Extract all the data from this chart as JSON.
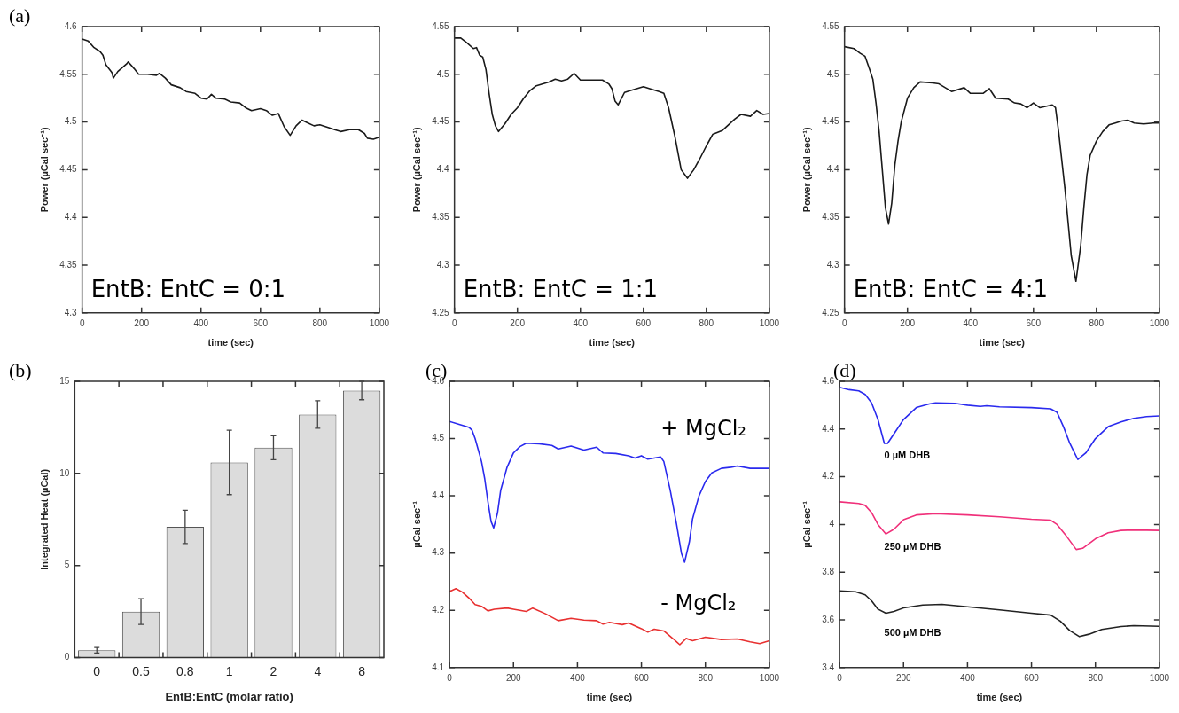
{
  "chart_data": [
    {
      "type": "line",
      "title": "(a)",
      "xlabel": "time (sec)",
      "ylabel": "Power (µCal sec⁻¹)",
      "annotations": [
        "EntB: EntC = 0:1"
      ],
      "xlim": [
        0,
        1000
      ],
      "xticks": [
        0,
        200,
        400,
        600,
        800,
        1000
      ],
      "ylim": [
        4.3,
        4.6
      ],
      "yticks": [
        4.3,
        4.35,
        4.4,
        4.45,
        4.5,
        4.55,
        4.6
      ],
      "grid": false,
      "legend": false,
      "series": [
        {
          "color": "#1a1a1a",
          "x": [
            0,
            20,
            40,
            60,
            70,
            80,
            100,
            105,
            120,
            150,
            155,
            175,
            190,
            220,
            250,
            260,
            280,
            300,
            330,
            350,
            380,
            400,
            420,
            435,
            450,
            480,
            500,
            530,
            550,
            570,
            600,
            620,
            640,
            660,
            680,
            700,
            720,
            740,
            760,
            780,
            800,
            830,
            850,
            870,
            900,
            930,
            950,
            960,
            980,
            1000
          ],
          "values": [
            4.587,
            4.585,
            4.578,
            4.574,
            4.57,
            4.56,
            4.552,
            4.546,
            4.553,
            4.561,
            4.563,
            4.556,
            4.55,
            4.55,
            4.549,
            4.551,
            4.546,
            4.539,
            4.536,
            4.532,
            4.53,
            4.525,
            4.524,
            4.529,
            4.525,
            4.524,
            4.521,
            4.52,
            4.515,
            4.512,
            4.514,
            4.512,
            4.507,
            4.509,
            4.495,
            4.486,
            4.496,
            4.502,
            4.499,
            4.496,
            4.497,
            4.494,
            4.492,
            4.49,
            4.492,
            4.492,
            4.488,
            4.483,
            4.482,
            4.484
          ]
        }
      ]
    },
    {
      "type": "line",
      "xlabel": "time (sec)",
      "ylabel": "Power (µCal sec⁻¹)",
      "annotations": [
        "EntB: EntC = 1:1"
      ],
      "xlim": [
        0,
        1000
      ],
      "xticks": [
        0,
        200,
        400,
        600,
        800,
        1000
      ],
      "ylim": [
        4.25,
        4.55
      ],
      "yticks": [
        4.25,
        4.3,
        4.35,
        4.4,
        4.45,
        4.5,
        4.55
      ],
      "grid": false,
      "legend": false,
      "series": [
        {
          "color": "#1a1a1a",
          "x": [
            0,
            20,
            40,
            60,
            70,
            80,
            90,
            100,
            110,
            120,
            130,
            140,
            160,
            180,
            200,
            220,
            240,
            260,
            300,
            320,
            340,
            360,
            380,
            400,
            440,
            470,
            490,
            500,
            510,
            520,
            540,
            560,
            600,
            620,
            650,
            665,
            680,
            700,
            720,
            740,
            760,
            780,
            800,
            820,
            850,
            870,
            890,
            910,
            940,
            960,
            980,
            1000
          ],
          "values": [
            4.538,
            4.538,
            4.533,
            4.527,
            4.528,
            4.52,
            4.518,
            4.505,
            4.48,
            4.458,
            4.446,
            4.44,
            4.448,
            4.458,
            4.465,
            4.475,
            4.483,
            4.488,
            4.492,
            4.495,
            4.493,
            4.495,
            4.501,
            4.494,
            4.494,
            4.494,
            4.49,
            4.485,
            4.472,
            4.468,
            4.481,
            4.483,
            4.487,
            4.485,
            4.482,
            4.48,
            4.465,
            4.435,
            4.4,
            4.391,
            4.4,
            4.412,
            4.425,
            4.437,
            4.441,
            4.447,
            4.453,
            4.458,
            4.456,
            4.462,
            4.458,
            4.459
          ]
        }
      ]
    },
    {
      "type": "line",
      "xlabel": "time (sec)",
      "ylabel": "Power (µCal sec⁻¹)",
      "annotations": [
        "EntB: EntC = 4:1"
      ],
      "xlim": [
        0,
        1000
      ],
      "xticks": [
        0,
        200,
        400,
        600,
        800,
        1000
      ],
      "ylim": [
        4.25,
        4.55
      ],
      "yticks": [
        4.25,
        4.3,
        4.35,
        4.4,
        4.45,
        4.5,
        4.55
      ],
      "grid": false,
      "legend": false,
      "series": [
        {
          "color": "#1a1a1a",
          "x": [
            0,
            30,
            50,
            65,
            80,
            90,
            100,
            110,
            120,
            130,
            140,
            150,
            160,
            170,
            180,
            200,
            220,
            240,
            280,
            300,
            340,
            380,
            400,
            440,
            460,
            480,
            520,
            540,
            560,
            580,
            600,
            620,
            660,
            670,
            680,
            690,
            700,
            710,
            720,
            735,
            750,
            760,
            770,
            780,
            800,
            820,
            840,
            860,
            880,
            900,
            920,
            950,
            980,
            1000
          ],
          "values": [
            4.529,
            4.527,
            4.522,
            4.519,
            4.505,
            4.495,
            4.47,
            4.44,
            4.4,
            4.36,
            4.343,
            4.365,
            4.405,
            4.43,
            4.45,
            4.475,
            4.486,
            4.492,
            4.491,
            4.49,
            4.482,
            4.486,
            4.48,
            4.48,
            4.485,
            4.475,
            4.474,
            4.47,
            4.469,
            4.465,
            4.47,
            4.465,
            4.468,
            4.465,
            4.44,
            4.41,
            4.38,
            4.345,
            4.31,
            4.283,
            4.32,
            4.36,
            4.395,
            4.415,
            4.43,
            4.44,
            4.447,
            4.449,
            4.451,
            4.452,
            4.449,
            4.448,
            4.449,
            4.449
          ]
        }
      ]
    },
    {
      "type": "bar",
      "title": "(b)",
      "xlabel": "EntB:EntC (molar ratio)",
      "ylabel": "Integrated Heat (µCal)",
      "categories": [
        "0",
        "0.5",
        "0.8",
        "1",
        "2",
        "4",
        "8"
      ],
      "values": [
        0.4,
        2.5,
        7.1,
        10.6,
        11.4,
        13.2,
        14.5
      ],
      "errors": [
        0.15,
        0.7,
        0.9,
        1.75,
        0.65,
        0.75,
        0.5
      ],
      "color": "#dcdcdc",
      "ylim": [
        0,
        15
      ],
      "yticks": [
        0,
        5,
        10,
        15
      ],
      "grid": false,
      "legend": false
    },
    {
      "type": "line",
      "title": "(c)",
      "xlabel": "time (sec)",
      "ylabel": "µCal sec⁻¹",
      "xlim": [
        0,
        1000
      ],
      "xticks": [
        0,
        200,
        400,
        600,
        800,
        1000
      ],
      "ylim": [
        4.1,
        4.6
      ],
      "yticks": [
        4.1,
        4.2,
        4.3,
        4.4,
        4.5,
        4.6
      ],
      "grid": false,
      "legend": false,
      "series": [
        {
          "name": "+ MgCl₂",
          "color": "#2a2aee",
          "x": [
            0,
            30,
            60,
            70,
            80,
            100,
            110,
            120,
            130,
            138,
            150,
            160,
            180,
            200,
            220,
            240,
            280,
            320,
            340,
            380,
            420,
            460,
            480,
            520,
            560,
            580,
            600,
            620,
            660,
            670,
            690,
            710,
            725,
            735,
            750,
            760,
            780,
            800,
            820,
            850,
            880,
            900,
            940,
            1000
          ],
          "values": [
            4.53,
            4.525,
            4.52,
            4.515,
            4.5,
            4.46,
            4.43,
            4.39,
            4.355,
            4.344,
            4.37,
            4.41,
            4.45,
            4.475,
            4.486,
            4.492,
            4.491,
            4.488,
            4.482,
            4.487,
            4.48,
            4.485,
            4.475,
            4.474,
            4.47,
            4.466,
            4.47,
            4.464,
            4.468,
            4.46,
            4.41,
            4.35,
            4.3,
            4.284,
            4.32,
            4.36,
            4.4,
            4.425,
            4.44,
            4.448,
            4.45,
            4.452,
            4.448,
            4.448
          ]
        },
        {
          "name": "- MgCl₂",
          "color": "#e83030",
          "x": [
            0,
            20,
            40,
            60,
            80,
            100,
            120,
            140,
            180,
            200,
            240,
            260,
            300,
            340,
            380,
            420,
            460,
            480,
            500,
            540,
            560,
            600,
            620,
            640,
            670,
            700,
            720,
            740,
            760,
            800,
            850,
            900,
            940,
            970,
            1000
          ],
          "values": [
            4.233,
            4.238,
            4.232,
            4.222,
            4.21,
            4.207,
            4.199,
            4.202,
            4.204,
            4.202,
            4.198,
            4.204,
            4.194,
            4.182,
            4.186,
            4.183,
            4.182,
            4.176,
            4.179,
            4.175,
            4.178,
            4.168,
            4.162,
            4.167,
            4.164,
            4.15,
            4.14,
            4.151,
            4.147,
            4.153,
            4.149,
            4.15,
            4.145,
            4.142,
            4.147
          ]
        }
      ]
    },
    {
      "type": "line",
      "title": "(d)",
      "xlabel": "time (sec)",
      "ylabel": "µCal sec⁻¹",
      "xlim": [
        0,
        1000
      ],
      "xticks": [
        0,
        200,
        400,
        600,
        800,
        1000
      ],
      "ylim": [
        3.4,
        4.6
      ],
      "yticks": [
        3.4,
        3.6,
        3.8,
        4,
        4.2,
        4.4,
        4.6
      ],
      "grid": false,
      "legend": false,
      "series": [
        {
          "name": "0 µM DHB",
          "color": "#2a2aee",
          "x": [
            0,
            30,
            60,
            80,
            100,
            120,
            140,
            150,
            170,
            200,
            240,
            280,
            300,
            360,
            400,
            440,
            460,
            500,
            600,
            660,
            680,
            700,
            720,
            745,
            770,
            800,
            840,
            880,
            920,
            960,
            1000
          ],
          "values": [
            4.575,
            4.565,
            4.56,
            4.545,
            4.51,
            4.44,
            4.34,
            4.34,
            4.38,
            4.44,
            4.49,
            4.505,
            4.51,
            4.508,
            4.5,
            4.495,
            4.498,
            4.493,
            4.49,
            4.485,
            4.47,
            4.41,
            4.34,
            4.272,
            4.3,
            4.36,
            4.41,
            4.43,
            4.445,
            4.452,
            4.455
          ]
        },
        {
          "name": "250 µM DHB",
          "color": "#f0307a",
          "x": [
            0,
            60,
            80,
            100,
            120,
            145,
            170,
            200,
            240,
            300,
            400,
            500,
            600,
            660,
            680,
            710,
            740,
            760,
            800,
            840,
            880,
            920,
            1000
          ],
          "values": [
            4.095,
            4.088,
            4.08,
            4.05,
            4.0,
            3.96,
            3.98,
            4.02,
            4.04,
            4.045,
            4.04,
            4.032,
            4.022,
            4.018,
            4.0,
            3.95,
            3.895,
            3.9,
            3.94,
            3.965,
            3.975,
            3.977,
            3.975
          ]
        },
        {
          "name": "500 µM DHB",
          "color": "#222222",
          "x": [
            0,
            50,
            80,
            100,
            120,
            145,
            170,
            200,
            260,
            320,
            400,
            500,
            600,
            660,
            690,
            720,
            750,
            780,
            820,
            880,
            920,
            1000
          ],
          "values": [
            3.722,
            3.718,
            3.705,
            3.68,
            3.645,
            3.628,
            3.635,
            3.65,
            3.662,
            3.665,
            3.655,
            3.642,
            3.628,
            3.62,
            3.595,
            3.555,
            3.53,
            3.54,
            3.56,
            3.572,
            3.576,
            3.573
          ]
        }
      ]
    }
  ]
}
